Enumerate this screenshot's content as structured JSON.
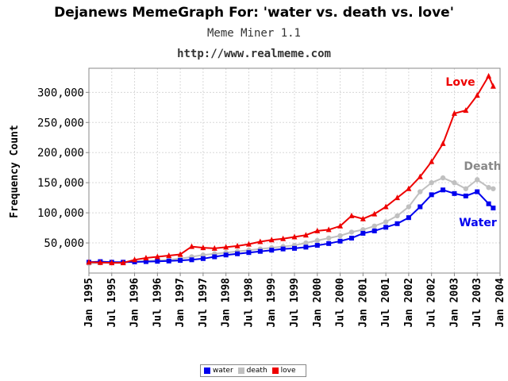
{
  "title": "Dejanews MemeGraph For: 'water vs. death vs. love'",
  "subtitle": "Meme Miner 1.1",
  "url": "http://www.realmeme.com",
  "colors": {
    "water": "#0000ee",
    "death": "#c0c0c0",
    "love": "#ee0000",
    "grid": "#d8d8d8"
  },
  "chart_data": {
    "type": "line",
    "ylabel": "Frequency Count",
    "ylim": [
      0,
      340000
    ],
    "yticks": [
      50000,
      100000,
      150000,
      200000,
      250000,
      300000
    ],
    "ytick_labels": [
      "50,000",
      "100,000",
      "150,000",
      "200,000",
      "250,000",
      "300,000"
    ],
    "xlim": [
      1995.0,
      2004.0
    ],
    "xticks": [
      1995.0,
      1995.5,
      1996.0,
      1996.5,
      1997.0,
      1997.5,
      1998.0,
      1998.5,
      1999.0,
      1999.5,
      2000.0,
      2000.5,
      2001.0,
      2001.5,
      2002.0,
      2002.5,
      2003.0,
      2003.5,
      2004.0
    ],
    "xtick_labels": [
      "Jan 1995",
      "Jul 1995",
      "Jan 1996",
      "Jul 1996",
      "Jan 1997",
      "Jul 1997",
      "Jan 1998",
      "Jul 1998",
      "Jan 1999",
      "Jul 1999",
      "Jan 2000",
      "Jul 2000",
      "Jan 2001",
      "Jul 2001",
      "Jan 2002",
      "Jul 2002",
      "Jan 2003",
      "Jul 2003",
      "Jan 2004"
    ],
    "series": [
      {
        "name": "water",
        "label": "Water",
        "marker": "square",
        "x": [
          1995.0,
          1995.25,
          1995.5,
          1995.75,
          1996.0,
          1996.25,
          1996.5,
          1996.75,
          1997.0,
          1997.25,
          1997.5,
          1997.75,
          1998.0,
          1998.25,
          1998.5,
          1998.75,
          1999.0,
          1999.25,
          1999.5,
          1999.75,
          2000.0,
          2000.25,
          2000.5,
          2000.75,
          2001.0,
          2001.25,
          2001.5,
          2001.75,
          2002.0,
          2002.25,
          2002.5,
          2002.75,
          2003.0,
          2003.25,
          2003.5,
          2003.75,
          2003.85
        ],
        "y": [
          18000,
          19000,
          18000,
          18000,
          18500,
          19000,
          19500,
          20000,
          21000,
          22000,
          24000,
          27000,
          30000,
          32000,
          34000,
          36000,
          38000,
          40000,
          41000,
          43000,
          46000,
          49000,
          53000,
          58000,
          66000,
          70000,
          76000,
          82000,
          92000,
          110000,
          130000,
          138000,
          132000,
          128000,
          135000,
          115000,
          108000
        ]
      },
      {
        "name": "death",
        "label": "Death",
        "marker": "circle",
        "x": [
          1995.0,
          1995.25,
          1995.5,
          1995.75,
          1996.0,
          1996.25,
          1996.5,
          1996.75,
          1997.0,
          1997.25,
          1997.5,
          1997.75,
          1998.0,
          1998.25,
          1998.5,
          1998.75,
          1999.0,
          1999.25,
          1999.5,
          1999.75,
          2000.0,
          2000.25,
          2000.5,
          2000.75,
          2001.0,
          2001.25,
          2001.5,
          2001.75,
          2002.0,
          2002.25,
          2002.5,
          2002.75,
          2003.0,
          2003.25,
          2003.5,
          2003.75,
          2003.85
        ],
        "y": [
          16000,
          17000,
          17500,
          18000,
          19000,
          20000,
          21000,
          22000,
          24000,
          27000,
          30000,
          32000,
          34000,
          36000,
          38000,
          40000,
          42000,
          44000,
          46000,
          50000,
          54000,
          58000,
          62000,
          68000,
          72000,
          78000,
          85000,
          95000,
          110000,
          135000,
          150000,
          158000,
          150000,
          140000,
          155000,
          142000,
          140000
        ]
      },
      {
        "name": "love",
        "label": "Love",
        "marker": "triangle",
        "x": [
          1995.0,
          1995.25,
          1995.5,
          1995.75,
          1996.0,
          1996.25,
          1996.5,
          1996.75,
          1997.0,
          1997.25,
          1997.5,
          1997.75,
          1998.0,
          1998.25,
          1998.5,
          1998.75,
          1999.0,
          1999.25,
          1999.5,
          1999.75,
          2000.0,
          2000.25,
          2000.5,
          2000.75,
          2001.0,
          2001.25,
          2001.5,
          2001.75,
          2002.0,
          2002.25,
          2002.5,
          2002.75,
          2003.0,
          2003.25,
          2003.5,
          2003.75,
          2003.85
        ],
        "y": [
          18000,
          17500,
          17000,
          17000,
          22000,
          25000,
          27000,
          29000,
          31000,
          44000,
          42000,
          41000,
          43000,
          45000,
          48000,
          52000,
          55000,
          57000,
          60000,
          63000,
          70000,
          72000,
          78000,
          95000,
          90000,
          98000,
          110000,
          125000,
          140000,
          160000,
          185000,
          215000,
          265000,
          270000,
          295000,
          327000,
          310000
        ]
      }
    ]
  }
}
